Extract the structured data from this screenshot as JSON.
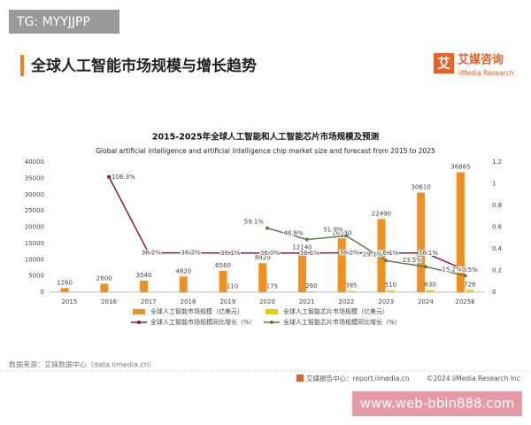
{
  "watermark_top": "TG: MYYJJPP",
  "header": {
    "title": "全球人工智能市场规模与增长趋势",
    "logo_icon": "艾",
    "logo": "艾媒咨询",
    "logo_sub": "iiMedia Research"
  },
  "chart_data": {
    "type": "bar",
    "title": "2015-2025年全球人工智能和人工智能芯片市场规模及预测",
    "subtitle": "Global artificial intelligence and artificial intelligence chip market size and forecast from 2015 to 2025",
    "categories": [
      "2015",
      "2016",
      "2017",
      "2018",
      "2019",
      "2020",
      "2021",
      "2022",
      "2023",
      "2024",
      "2025E"
    ],
    "series": [
      {
        "name": "全球人工智能市场规模（亿美元）",
        "type": "bar",
        "color": "#f0901e",
        "values": [
          1260,
          2600,
          3540,
          4820,
          6560,
          8920,
          12140,
          16530,
          22490,
          30610,
          36885
        ]
      },
      {
        "name": "全球人工智能芯片市场规模（亿美元）",
        "type": "bar",
        "color": "#f5c518",
        "values": [
          null,
          null,
          null,
          null,
          110,
          175,
          260,
          395,
          510,
          630,
          726
        ]
      },
      {
        "name": "全球人工智能市场规模同比增长（%）",
        "type": "line",
        "axis": "y2",
        "color": "#8b1a3a",
        "values": [
          null,
          1.063,
          0.362,
          0.362,
          0.361,
          0.36,
          0.361,
          0.362,
          0.361,
          0.361,
          0.205
        ],
        "value_labels": [
          null,
          "106.3%",
          "36.2%",
          "36.2%",
          "36.1%",
          "36.0%",
          "36.1%",
          "36.2%",
          "36.1%",
          "36.1%",
          "20.5%"
        ]
      },
      {
        "name": "全球人工智能芯片市场规模同比增长（%）",
        "type": "line",
        "axis": "y2",
        "color": "#5e7d4c",
        "values": [
          null,
          null,
          null,
          null,
          null,
          0.591,
          0.486,
          0.519,
          0.291,
          0.235,
          0.152
        ],
        "value_labels": [
          null,
          null,
          null,
          null,
          null,
          "59.1%",
          "48.6%",
          "51.9%",
          "29.1%",
          "23.5%",
          "15.2%"
        ]
      }
    ],
    "ylim": [
      0,
      40000
    ],
    "yticks": [
      0,
      5000,
      10000,
      15000,
      20000,
      25000,
      30000,
      35000,
      40000
    ],
    "y2lim": [
      0,
      1.2
    ],
    "y2ticks": [
      0,
      0.2,
      0.4,
      0.6,
      0.8,
      1,
      1.2
    ]
  },
  "footer": {
    "source": "数据来源：艾媒数据中心（data.iimedia.cn）",
    "report": "艾媒报告中心：report.iimedia.cn",
    "copyright": "©2024 iiMedia Research Inc"
  },
  "watermark_bottom": "www.web-bbin888.com"
}
